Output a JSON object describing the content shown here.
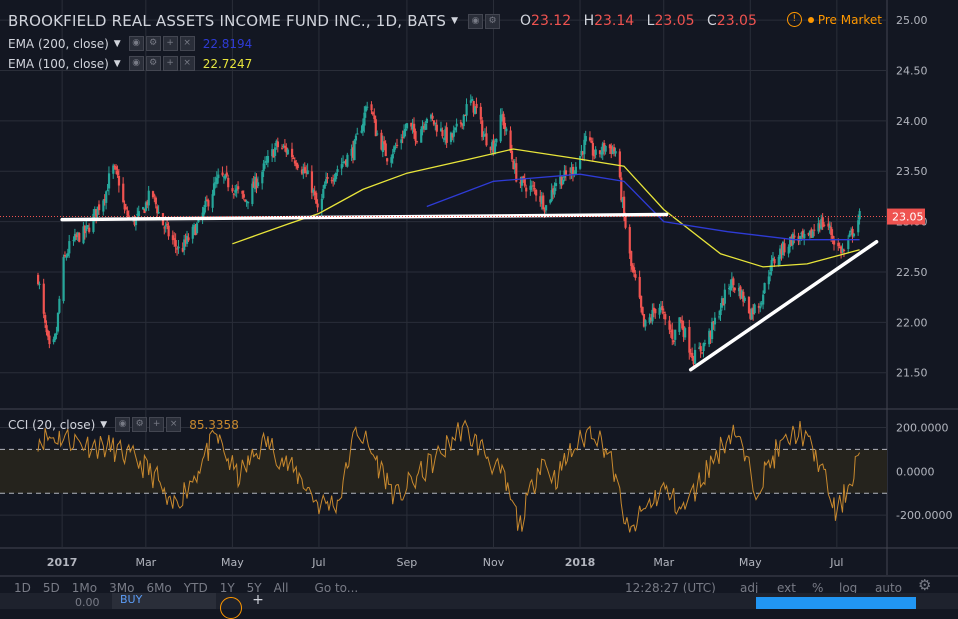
{
  "header": {
    "symbol": "BROOKFIELD REAL ASSETS INCOME FUND INC., 1D, BATS",
    "open_label": "O",
    "open": "23.12",
    "high_label": "H",
    "high": "23.14",
    "low_label": "L",
    "low": "23.05",
    "close_label": "C",
    "close": "23.05",
    "premarket": "Pre Market"
  },
  "indicators": [
    {
      "label": "EMA (200, close)",
      "value": "22.8194",
      "color": "#2e3bd6"
    },
    {
      "label": "EMA (100, close)",
      "value": "22.7247",
      "color": "#e8e53a"
    }
  ],
  "cci": {
    "label": "CCI (20, close)",
    "value": "85.3358",
    "color": "#c8892e"
  },
  "price_axis": {
    "ticks": [
      "25.00",
      "24.50",
      "24.00",
      "23.50",
      "23.00",
      "22.50",
      "22.00",
      "21.50"
    ],
    "last": "23.05"
  },
  "cci_axis": {
    "ticks": [
      "200.0000",
      "0.0000",
      "-200.0000"
    ]
  },
  "time_axis": {
    "ticks": [
      "2017",
      "Mar",
      "May",
      "Jul",
      "Sep",
      "Nov",
      "2018",
      "Mar",
      "May",
      "Jul"
    ]
  },
  "bottombar": {
    "timeframes": [
      "1D",
      "5D",
      "1Mo",
      "3Mo",
      "6Mo",
      "YTD",
      "1Y",
      "5Y",
      "All"
    ],
    "goto": "Go to...",
    "time": "12:28:27 (UTC)",
    "right": [
      "adj",
      "ext",
      "%",
      "log",
      "auto"
    ]
  },
  "order_bar": {
    "zero": "0.00",
    "buy": "BUY"
  },
  "colors": {
    "up": "#26a69a",
    "down": "#ef5350",
    "bg": "#131722",
    "grid": "#2a2e39"
  },
  "chart_data": {
    "type": "candlestick",
    "title": "BROOKFIELD REAL ASSETS INCOME FUND INC., 1D, BATS",
    "ylim": [
      21.15,
      25.1
    ],
    "x_ticks": [
      "2017",
      "Mar",
      "May",
      "Jul",
      "Sep",
      "Nov",
      "2018",
      "Mar",
      "May",
      "Jul"
    ],
    "price_path": [
      [
        "2016-12-15",
        22.45
      ],
      [
        "2016-12-20",
        21.95
      ],
      [
        "2016-12-24",
        21.65
      ],
      [
        "2016-12-28",
        21.9
      ],
      [
        "2017-01-01",
        22.55
      ],
      [
        "2017-01-06",
        22.75
      ],
      [
        "2017-01-12",
        22.85
      ],
      [
        "2017-01-18",
        22.9
      ],
      [
        "2017-01-25",
        23.1
      ],
      [
        "2017-02-01",
        23.3
      ],
      [
        "2017-02-05",
        23.55
      ],
      [
        "2017-02-10",
        23.4
      ],
      [
        "2017-02-14",
        23.1
      ],
      [
        "2017-02-20",
        23.0
      ],
      [
        "2017-02-25",
        23.05
      ],
      [
        "2017-03-05",
        23.3
      ],
      [
        "2017-03-12",
        23.0
      ],
      [
        "2017-03-18",
        22.85
      ],
      [
        "2017-03-25",
        22.7
      ],
      [
        "2017-04-01",
        22.85
      ],
      [
        "2017-04-08",
        23.0
      ],
      [
        "2017-04-15",
        23.25
      ],
      [
        "2017-04-22",
        23.45
      ],
      [
        "2017-05-01",
        23.35
      ],
      [
        "2017-05-10",
        23.2
      ],
      [
        "2017-05-20",
        23.45
      ],
      [
        "2017-06-01",
        23.75
      ],
      [
        "2017-06-10",
        23.7
      ],
      [
        "2017-06-18",
        23.55
      ],
      [
        "2017-06-25",
        23.4
      ],
      [
        "2017-07-01",
        23.05
      ],
      [
        "2017-07-05",
        23.35
      ],
      [
        "2017-07-15",
        23.55
      ],
      [
        "2017-07-25",
        23.7
      ],
      [
        "2017-08-01",
        24.0
      ],
      [
        "2017-08-05",
        24.25
      ],
      [
        "2017-08-10",
        23.9
      ],
      [
        "2017-08-18",
        23.65
      ],
      [
        "2017-08-25",
        23.75
      ],
      [
        "2017-09-01",
        23.95
      ],
      [
        "2017-09-08",
        23.85
      ],
      [
        "2017-09-15",
        24.05
      ],
      [
        "2017-09-22",
        23.95
      ],
      [
        "2017-10-01",
        23.8
      ],
      [
        "2017-10-08",
        23.95
      ],
      [
        "2017-10-15",
        24.2
      ],
      [
        "2017-10-20",
        24.1
      ],
      [
        "2017-10-25",
        23.85
      ],
      [
        "2017-11-01",
        23.75
      ],
      [
        "2017-11-07",
        24.05
      ],
      [
        "2017-11-12",
        23.75
      ],
      [
        "2017-11-18",
        23.4
      ],
      [
        "2017-11-25",
        23.35
      ],
      [
        "2017-12-01",
        23.3
      ],
      [
        "2017-12-08",
        23.15
      ],
      [
        "2017-12-15",
        23.4
      ],
      [
        "2017-12-22",
        23.45
      ],
      [
        "2017-12-29",
        23.55
      ],
      [
        "2018-01-05",
        23.8
      ],
      [
        "2018-01-12",
        23.65
      ],
      [
        "2018-01-19",
        23.75
      ],
      [
        "2018-01-26",
        23.7
      ],
      [
        "2018-02-01",
        23.05
      ],
      [
        "2018-02-06",
        22.55
      ],
      [
        "2018-02-10",
        22.35
      ],
      [
        "2018-02-15",
        21.95
      ],
      [
        "2018-02-20",
        22.05
      ],
      [
        "2018-02-25",
        22.2
      ],
      [
        "2018-03-02",
        22.0
      ],
      [
        "2018-03-08",
        21.85
      ],
      [
        "2018-03-12",
        22.05
      ],
      [
        "2018-03-18",
        21.8
      ],
      [
        "2018-03-22",
        21.65
      ],
      [
        "2018-03-28",
        21.75
      ],
      [
        "2018-04-03",
        21.9
      ],
      [
        "2018-04-10",
        22.15
      ],
      [
        "2018-04-17",
        22.4
      ],
      [
        "2018-04-24",
        22.3
      ],
      [
        "2018-05-01",
        22.1
      ],
      [
        "2018-05-08",
        22.2
      ],
      [
        "2018-05-15",
        22.55
      ],
      [
        "2018-05-22",
        22.7
      ],
      [
        "2018-06-01",
        22.85
      ],
      [
        "2018-06-10",
        22.8
      ],
      [
        "2018-06-18",
        23.0
      ],
      [
        "2018-06-25",
        22.95
      ],
      [
        "2018-07-01",
        22.75
      ],
      [
        "2018-07-06",
        22.7
      ],
      [
        "2018-07-12",
        22.9
      ],
      [
        "2018-07-17",
        23.05
      ]
    ],
    "ema200": [
      [
        "2017-09-15",
        23.15
      ],
      [
        "2017-11-01",
        23.4
      ],
      [
        "2018-01-01",
        23.47
      ],
      [
        "2018-02-01",
        23.4
      ],
      [
        "2018-03-01",
        23.0
      ],
      [
        "2018-04-15",
        22.9
      ],
      [
        "2018-06-01",
        22.82
      ],
      [
        "2018-07-17",
        22.82
      ]
    ],
    "ema100": [
      [
        "2017-05-01",
        22.78
      ],
      [
        "2017-06-10",
        22.98
      ],
      [
        "2017-07-01",
        23.08
      ],
      [
        "2017-08-01",
        23.32
      ],
      [
        "2017-09-01",
        23.48
      ],
      [
        "2017-10-15",
        23.62
      ],
      [
        "2017-11-15",
        23.72
      ],
      [
        "2018-01-01",
        23.62
      ],
      [
        "2018-02-01",
        23.55
      ],
      [
        "2018-03-01",
        23.12
      ],
      [
        "2018-04-10",
        22.68
      ],
      [
        "2018-05-10",
        22.55
      ],
      [
        "2018-06-10",
        22.58
      ],
      [
        "2018-07-17",
        22.72
      ]
    ],
    "trendlines": [
      {
        "from": [
          "2017-01-01",
          23.02
        ],
        "to": [
          "2018-03-03",
          23.07
        ]
      },
      {
        "from": [
          "2018-03-20",
          21.53
        ],
        "to": [
          "2018-07-29",
          22.8
        ]
      }
    ],
    "last_price": 23.05,
    "cci": {
      "name": "CCI (20, close)",
      "ylim": [
        -350,
        280
      ],
      "bands": [
        100,
        -100
      ],
      "current": 85.3358,
      "path": [
        [
          "2016-12-15",
          150
        ],
        [
          "2017-01-01",
          160
        ],
        [
          "2017-01-20",
          120
        ],
        [
          "2017-02-05",
          110
        ],
        [
          "2017-02-25",
          40
        ],
        [
          "2017-03-10",
          -40
        ],
        [
          "2017-03-18",
          -180
        ],
        [
          "2017-04-01",
          -60
        ],
        [
          "2017-04-20",
          160
        ],
        [
          "2017-05-05",
          -30
        ],
        [
          "2017-05-25",
          140
        ],
        [
          "2017-06-10",
          20
        ],
        [
          "2017-06-20",
          -40
        ],
        [
          "2017-07-01",
          -150
        ],
        [
          "2017-07-15",
          -140
        ],
        [
          "2017-07-28",
          200
        ],
        [
          "2017-08-10",
          60
        ],
        [
          "2017-08-25",
          -120
        ],
        [
          "2017-09-10",
          -20
        ],
        [
          "2017-09-25",
          80
        ],
        [
          "2017-10-10",
          200
        ],
        [
          "2017-10-25",
          100
        ],
        [
          "2017-11-08",
          -30
        ],
        [
          "2017-11-20",
          -250
        ],
        [
          "2017-12-05",
          60
        ],
        [
          "2017-12-15",
          -40
        ],
        [
          "2017-12-25",
          80
        ],
        [
          "2018-01-10",
          200
        ],
        [
          "2018-01-22",
          80
        ],
        [
          "2018-02-05",
          -300
        ],
        [
          "2018-02-15",
          -180
        ],
        [
          "2018-03-01",
          -80
        ],
        [
          "2018-03-15",
          -180
        ],
        [
          "2018-04-01",
          10
        ],
        [
          "2018-04-20",
          200
        ],
        [
          "2018-05-05",
          -80
        ],
        [
          "2018-05-20",
          90
        ],
        [
          "2018-06-05",
          190
        ],
        [
          "2018-06-20",
          30
        ],
        [
          "2018-07-01",
          -200
        ],
        [
          "2018-07-10",
          -60
        ],
        [
          "2018-07-17",
          85
        ]
      ]
    }
  }
}
